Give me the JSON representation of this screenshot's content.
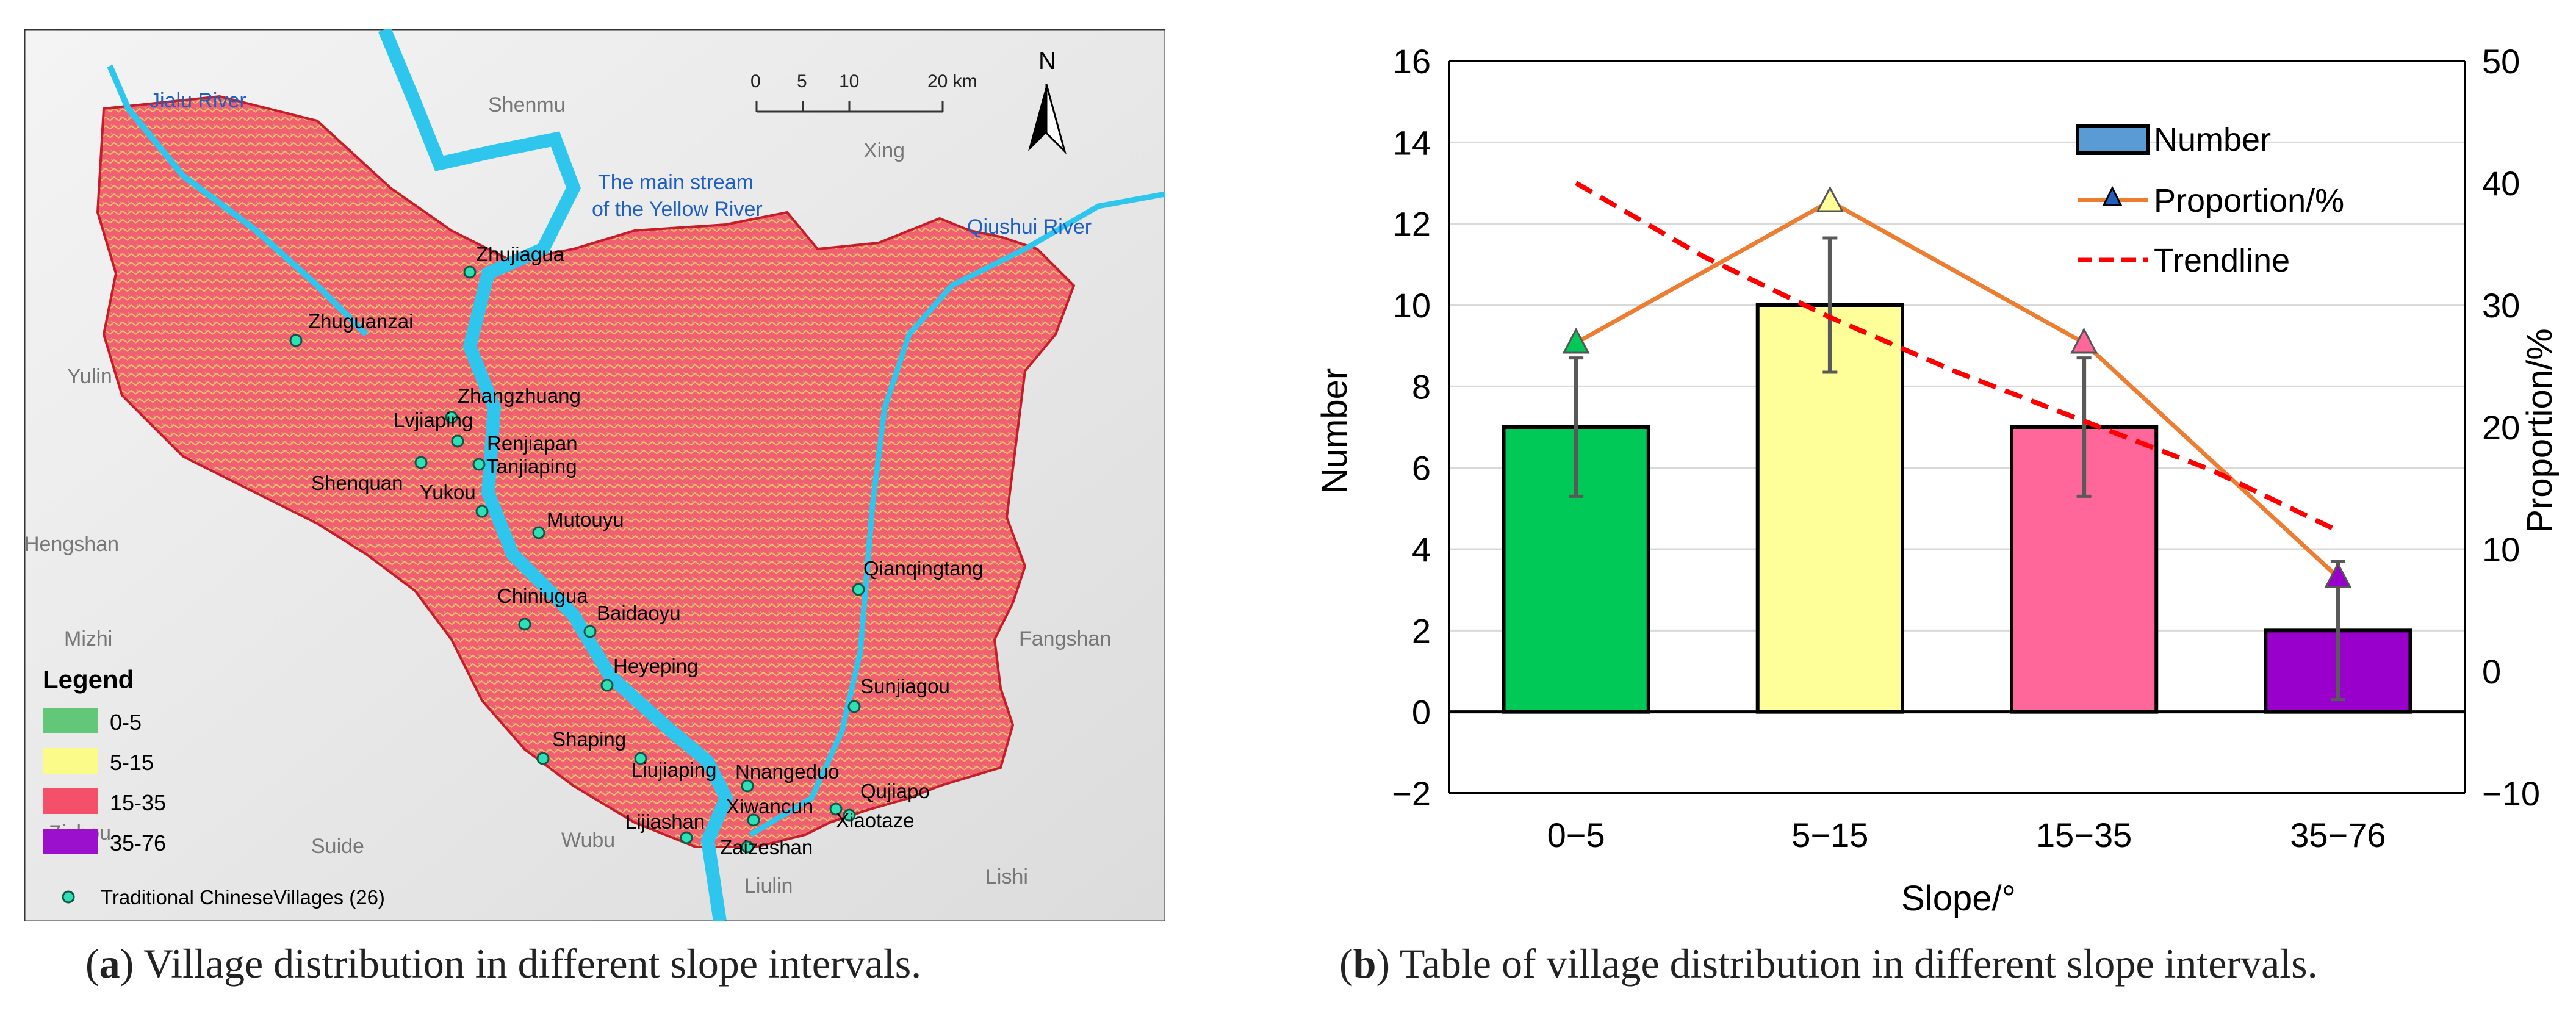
{
  "map": {
    "rivers": {
      "jialu": "Jialu River",
      "yellow_line1": "The main stream",
      "yellow_line2": "of the Yellow River",
      "qiushui": "Qiushui River"
    },
    "regions": [
      "Shenmu",
      "Xing",
      "Yulin",
      "Hengshan",
      "Mizhi",
      "Fangshan",
      "Suide",
      "Zizhou",
      "Wubu",
      "Liulin",
      "Lishi"
    ],
    "scale": {
      "ticks": [
        "0",
        "5",
        "10",
        "20 km"
      ]
    },
    "north": "N",
    "villages": [
      "Zhujiagua",
      "Zhuguanzai",
      "Zhangzhuang",
      "Lvjiaping",
      "Renjiapan",
      "Tanjiaping",
      "Shenquan",
      "Yukou",
      "Mutouyu",
      "Qianqingtang",
      "Chiniugua",
      "Baidaoyu",
      "Heyeping",
      "Sunjiagou",
      "Shaping",
      "Liujiaping",
      "Nnangeduo",
      "Qujiapo",
      "Xiwancun",
      "Xiaotaze",
      "Lijiashan",
      "Zaizeshan"
    ],
    "legend": {
      "title": "Legend",
      "items": [
        {
          "label": "0-5",
          "color": "#63c77a"
        },
        {
          "label": "5-15",
          "color": "#fbfb8a"
        },
        {
          "label": "15-35",
          "color": "#f5506a"
        },
        {
          "label": "35-76",
          "color": "#9b10cc"
        }
      ],
      "village_label": "Traditional ChineseVillages (26)"
    }
  },
  "chart_data": {
    "type": "bar",
    "categories": [
      "0−5",
      "5−15",
      "15−35",
      "35−76"
    ],
    "series": [
      {
        "name": "Number",
        "values": [
          7,
          10,
          7,
          2
        ],
        "error": [
          1.7,
          1.65,
          1.7,
          1.7
        ],
        "colors": [
          "#00c957",
          "#ffff99",
          "#ff6699",
          "#9900cc"
        ]
      },
      {
        "name": "Proportion/%",
        "axis": "right",
        "values": [
          26.9,
          38.5,
          26.9,
          7.7
        ],
        "marker_colors": [
          "#00c957",
          "#ffff99",
          "#ff6699",
          "#9900cc"
        ],
        "line_color": "#ed7d31"
      },
      {
        "name": "Trendline",
        "axis": "right",
        "style": "dashed",
        "color": "#ff0000",
        "x": [
          0,
          0.5,
          1,
          1.5,
          2,
          2.5,
          3
        ],
        "values": [
          40,
          34,
          29,
          24.5,
          20.5,
          16.5,
          11.5
        ]
      }
    ],
    "xlabel": "Slope/°",
    "ylabel": "Number",
    "y2label": "Proportion/%",
    "ylim": [
      -2,
      16
    ],
    "y2lim": [
      -10,
      50
    ],
    "yticks": [
      "−2",
      "0",
      "2",
      "4",
      "6",
      "8",
      "10",
      "12",
      "14",
      "16"
    ],
    "y2ticks": [
      "−10",
      "0",
      "10",
      "20",
      "30",
      "40",
      "50"
    ],
    "legend_position": "top-right",
    "grid": true
  },
  "captions": {
    "a_label": "a",
    "a_text": " Village distribution in different slope intervals.",
    "b_label": "b",
    "b_text": " Table of village distribution in different slope intervals."
  }
}
